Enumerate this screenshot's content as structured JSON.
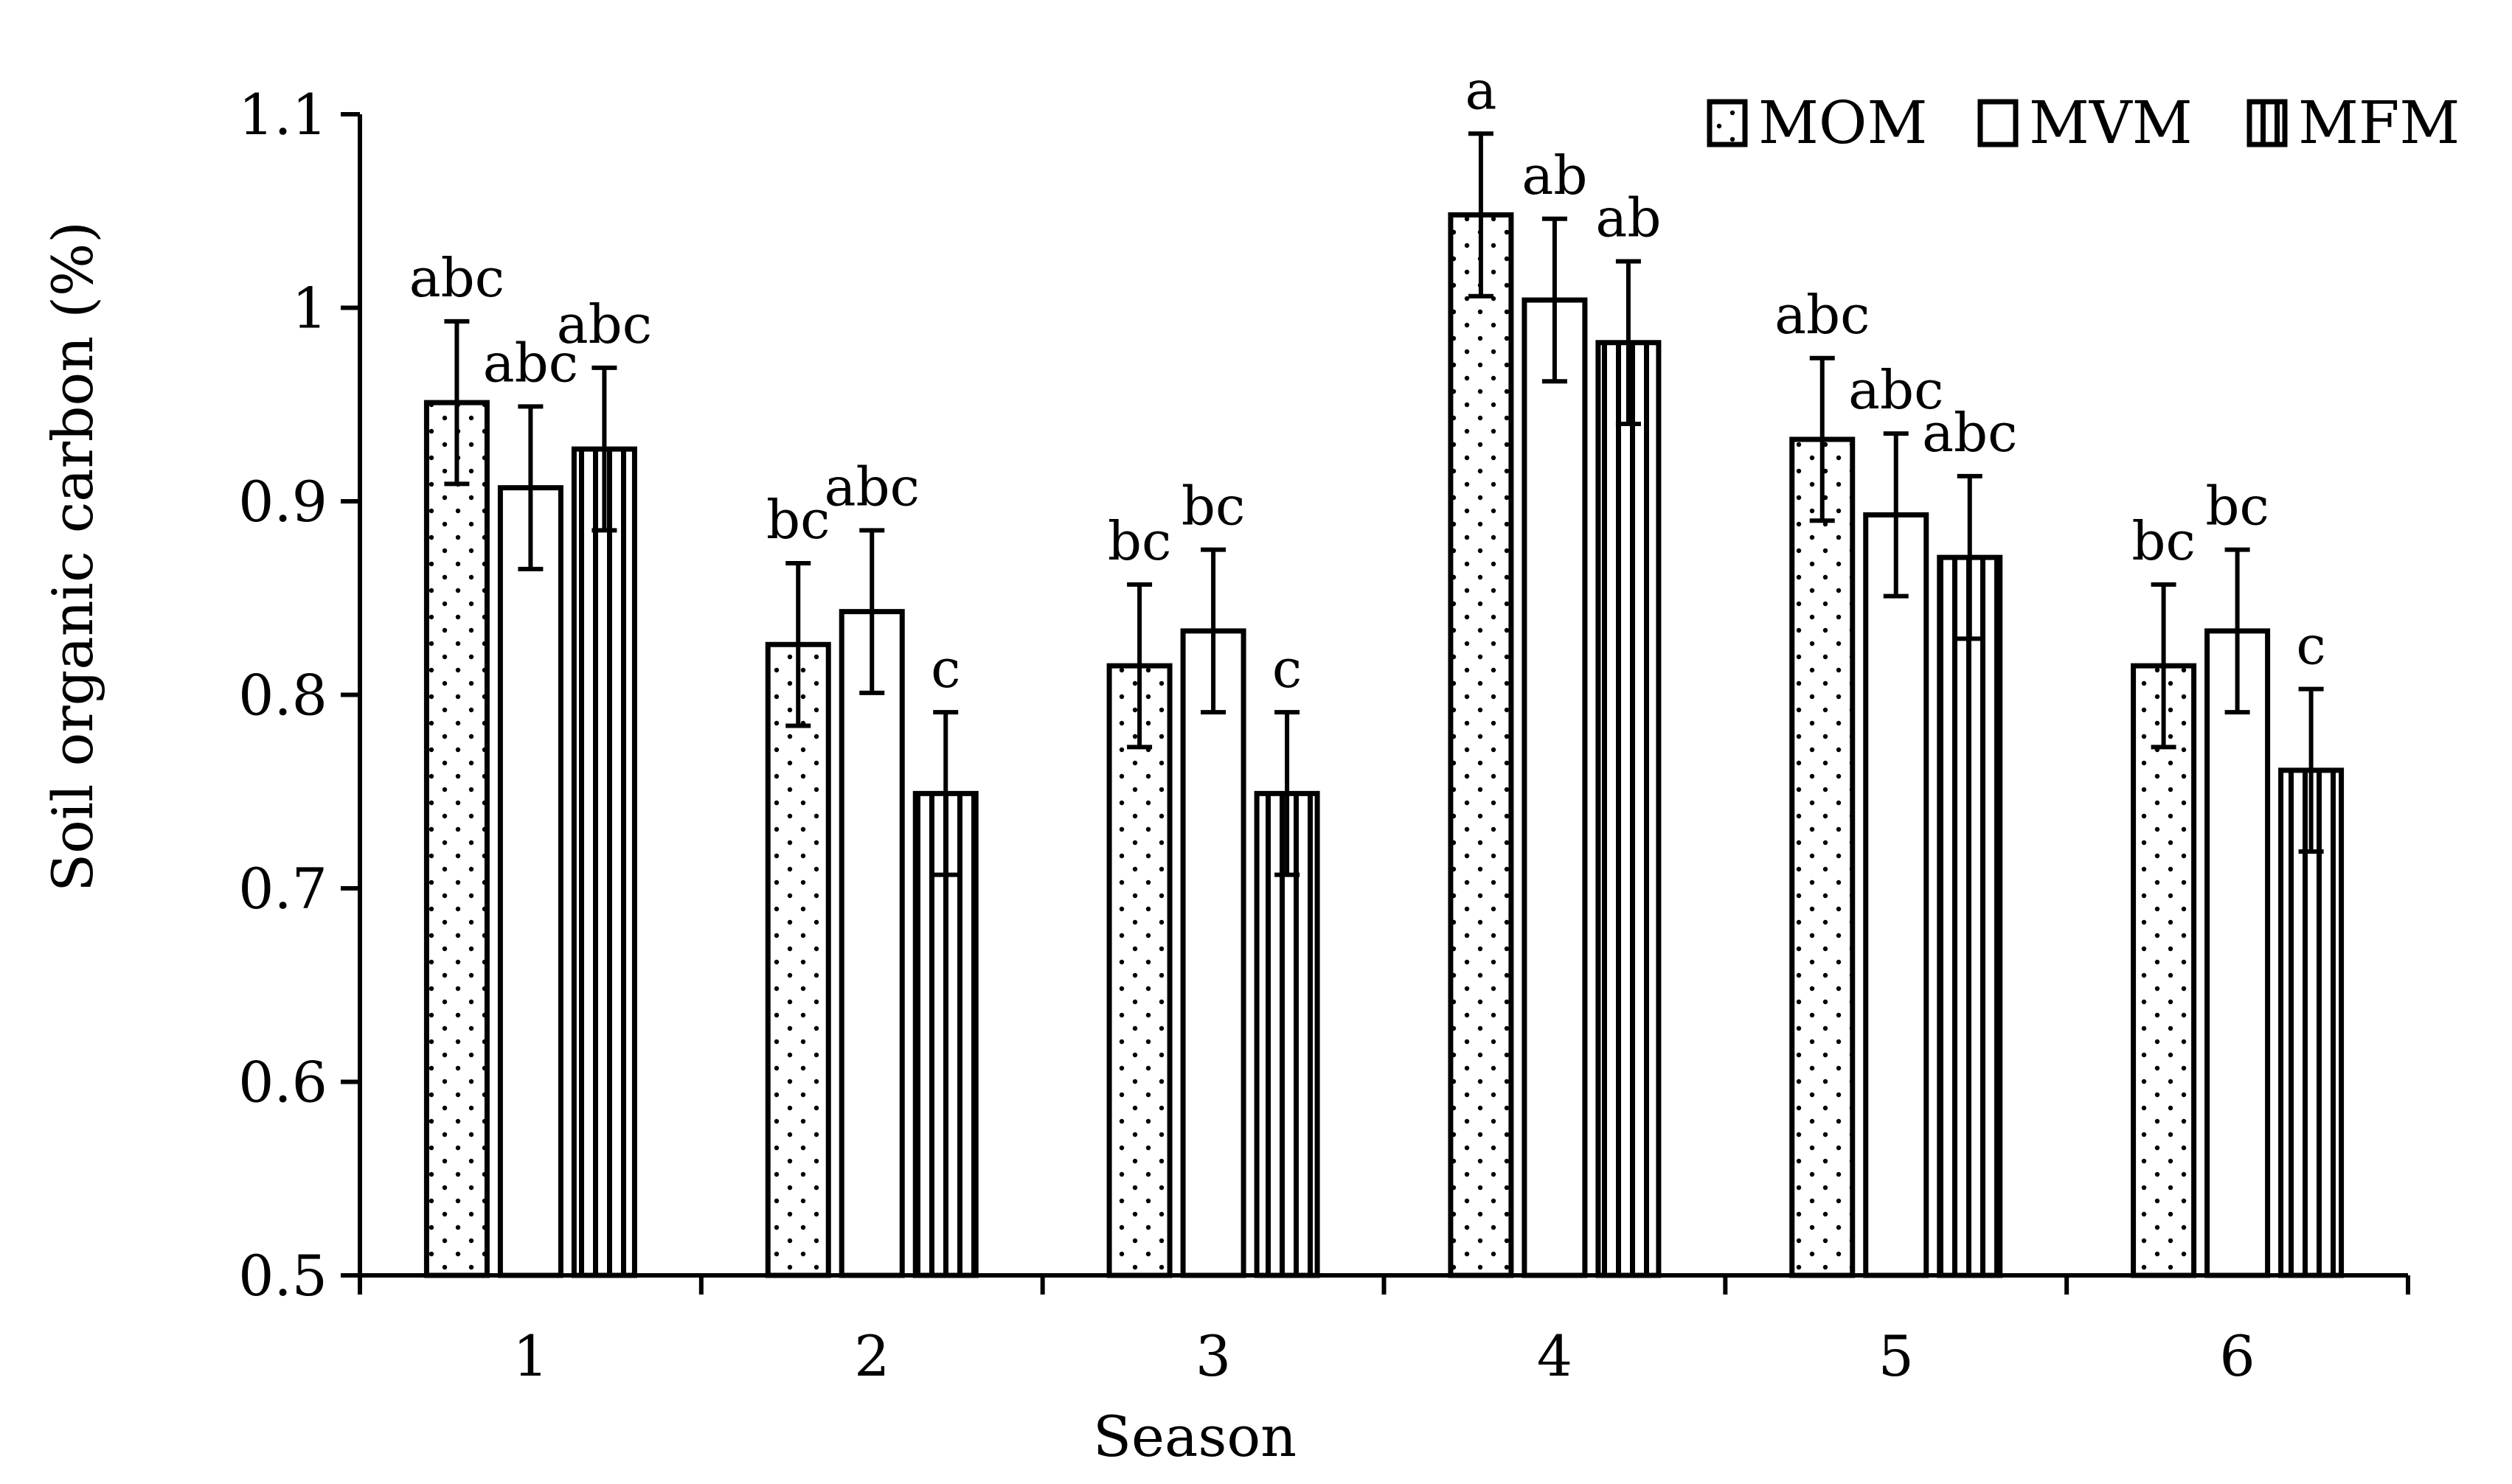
{
  "chart_data": {
    "type": "bar",
    "title": "",
    "xlabel": "Season",
    "ylabel": "Soil organic carbon (%)",
    "ylim": [
      0.5,
      1.1
    ],
    "yticks": [
      "0.5",
      "0.6",
      "0.7",
      "0.8",
      "0.9",
      "1",
      "1.1"
    ],
    "categories": [
      "1",
      "2",
      "3",
      "4",
      "5",
      "6"
    ],
    "grid": false,
    "legend_position": "top-right",
    "series": [
      {
        "name": "MOM",
        "pattern": "dots",
        "values": [
          0.951,
          0.826,
          0.815,
          1.048,
          0.932,
          0.815
        ],
        "errors": [
          0.042,
          0.042,
          0.042,
          0.042,
          0.042,
          0.042
        ],
        "labels": [
          "abc",
          "bc",
          "bc",
          "a",
          "abc",
          "bc"
        ]
      },
      {
        "name": "MVM",
        "pattern": "plain",
        "values": [
          0.907,
          0.843,
          0.833,
          1.004,
          0.893,
          0.833
        ],
        "errors": [
          0.042,
          0.042,
          0.042,
          0.042,
          0.042,
          0.042
        ],
        "labels": [
          "abc",
          "abc",
          "bc",
          "ab",
          "abc",
          "bc"
        ]
      },
      {
        "name": "MFM",
        "pattern": "stripes",
        "values": [
          0.927,
          0.749,
          0.749,
          0.982,
          0.871,
          0.761
        ],
        "errors": [
          0.042,
          0.042,
          0.042,
          0.042,
          0.042,
          0.042
        ],
        "labels": [
          "abc",
          "c",
          "c",
          "ab",
          "abc",
          "c"
        ]
      }
    ],
    "colors": {
      "ink": "#000000",
      "background": "#ffffff"
    }
  }
}
